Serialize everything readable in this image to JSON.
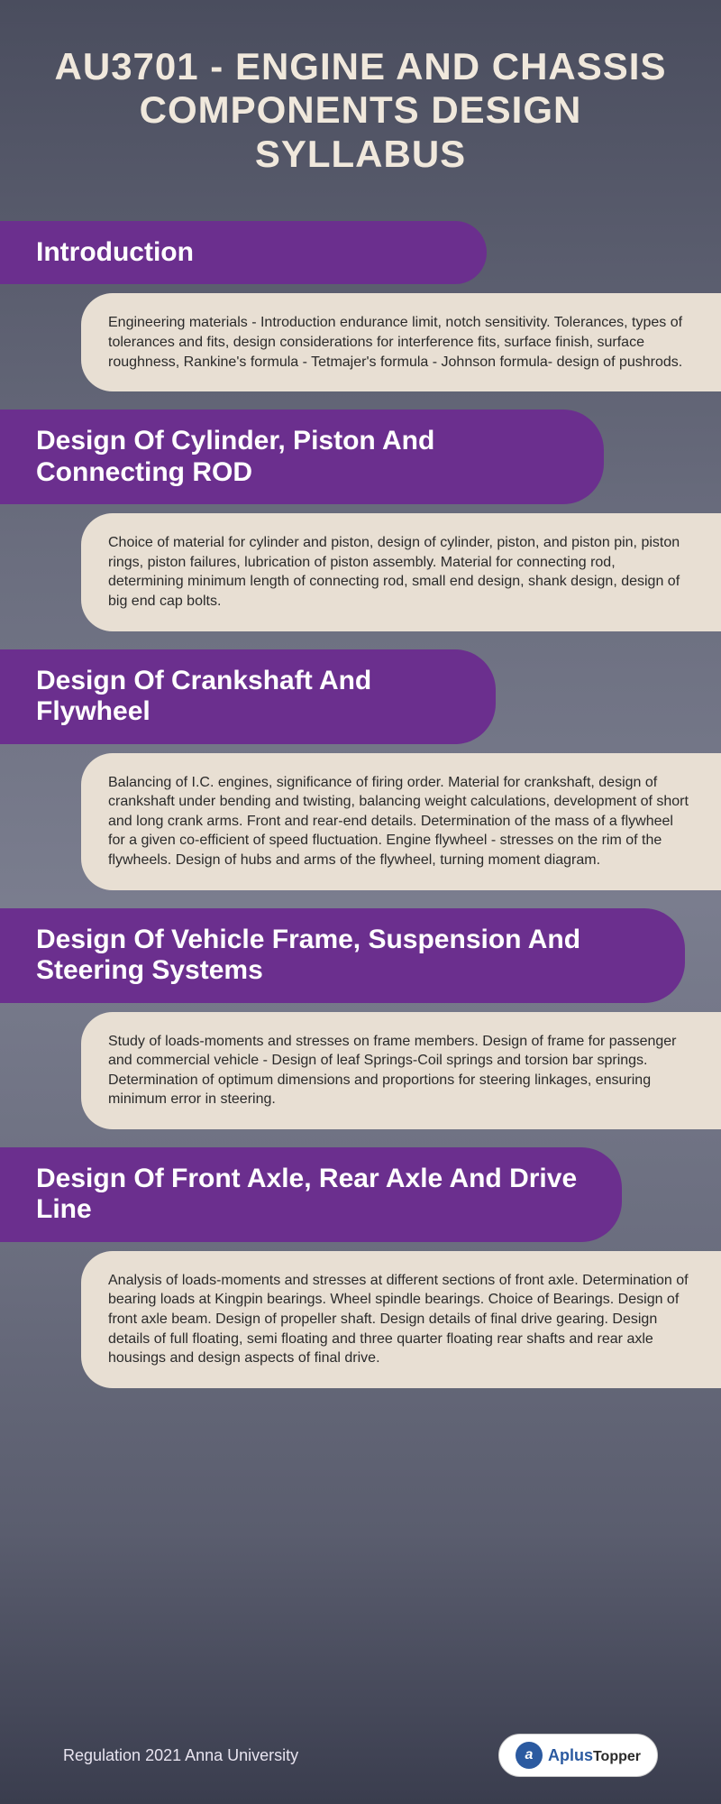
{
  "title": "AU3701 - ENGINE AND CHASSIS COMPONENTS DESIGN SYLLABUS",
  "sections": [
    {
      "heading": "Introduction",
      "body": "Engineering materials - Introduction endurance limit, notch sensitivity. Tolerances, types of tolerances and fits, design considerations for interference fits, surface finish, surface roughness, Rankine's formula - Tetmajer's formula - Johnson formula- design of pushrods."
    },
    {
      "heading": "Design Of Cylinder, Piston And Connecting ROD",
      "body": "Choice of material for cylinder and piston, design of cylinder, piston, and piston pin, piston rings, piston failures, lubrication of piston assembly. Material for connecting rod, determining minimum length of connecting rod, small end design, shank design, design of big end cap bolts."
    },
    {
      "heading": "Design Of Crankshaft And Flywheel",
      "body": "Balancing of I.C. engines, significance of firing order. Material for crankshaft, design of crankshaft under bending and twisting, balancing weight calculations, development of short and long crank arms. Front and rear-end details. Determination of the mass of a flywheel for a given co-efficient of speed fluctuation. Engine flywheel - stresses on the rim of the flywheels. Design of hubs and arms of the flywheel, turning moment diagram."
    },
    {
      "heading": "Design Of Vehicle Frame, Suspension And Steering Systems",
      "body": "Study of loads-moments and stresses on frame members. Design of frame for passenger and commercial vehicle - Design of leaf Springs-Coil springs and torsion bar springs. Determination of optimum dimensions and proportions for steering linkages, ensuring minimum error in steering."
    },
    {
      "heading": "Design Of Front Axle, Rear Axle And Drive Line",
      "body": "Analysis of loads-moments and stresses at different sections of front axle. Determination of bearing loads at Kingpin bearings. Wheel spindle bearings. Choice of Bearings. Design of front axle beam. Design of propeller shaft. Design details of final drive gearing. Design details of full floating, semi floating and three quarter floating rear shafts and rear axle housings and design aspects of final drive."
    }
  ],
  "footer": {
    "regulation": "Regulation 2021 Anna University",
    "logo_letter": "a",
    "logo_plus": "+",
    "logo_brand_a": "Aplus",
    "logo_brand_b": "Topper"
  },
  "colors": {
    "header_bg": "#6b2f8e",
    "body_bg": "#e8dfd3",
    "title_color": "#f0e8dc",
    "logo_blue": "#2b5aa0"
  }
}
